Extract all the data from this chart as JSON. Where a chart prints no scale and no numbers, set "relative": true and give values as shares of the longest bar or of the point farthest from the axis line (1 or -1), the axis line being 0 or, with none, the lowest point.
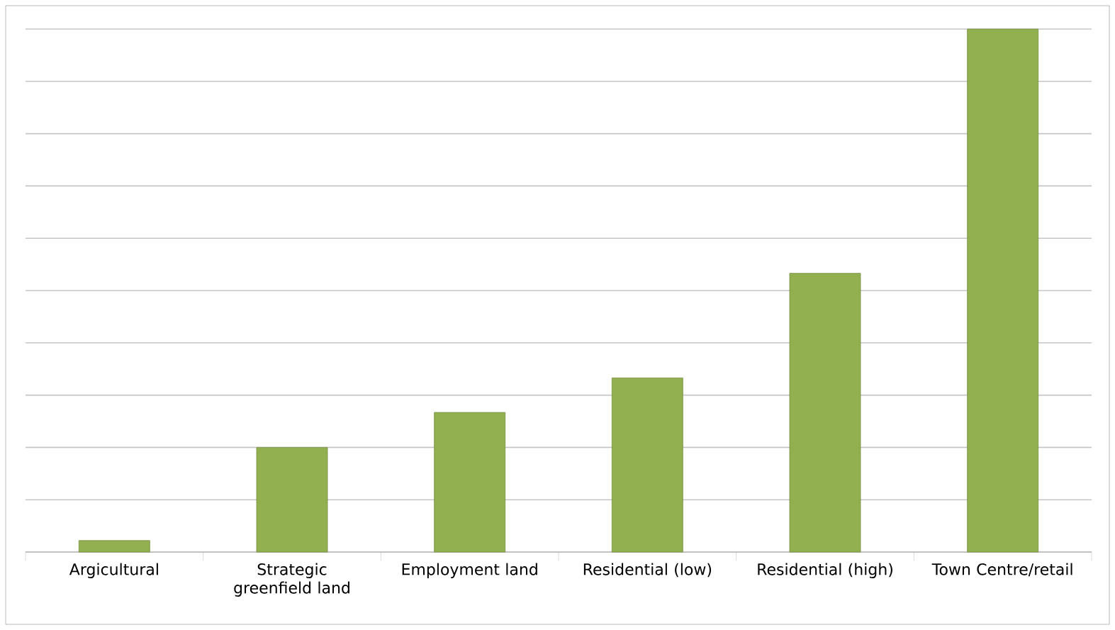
{
  "chart_data": {
    "type": "bar",
    "relative": true,
    "grid": "y",
    "color": "#92b050",
    "categories": [
      "Argicultural",
      "Strategic greenfield land",
      "Employment land",
      "Residential (low)",
      "Residential (high)",
      "Town Centre/retail"
    ],
    "values": [
      0.022,
      0.2,
      0.267,
      0.333,
      0.533,
      1
    ]
  }
}
